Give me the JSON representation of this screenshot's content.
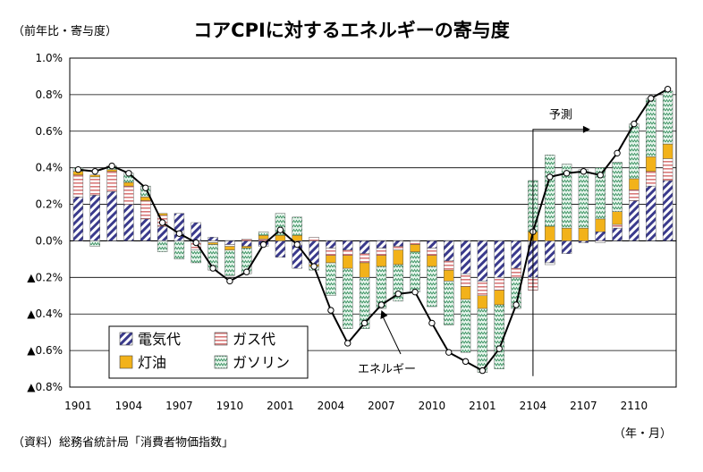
{
  "chart_data": {
    "type": "bar",
    "title": "コアCPIに対するエネルギーの寄与度",
    "ylabel": "（前年比・寄与度）",
    "xlabel": "（年・月）",
    "ylim": [
      -0.8,
      1.0
    ],
    "y_ticks": [
      {
        "v": 1.0,
        "label": "1.0%"
      },
      {
        "v": 0.8,
        "label": "0.8%"
      },
      {
        "v": 0.6,
        "label": "0.6%"
      },
      {
        "v": 0.4,
        "label": "0.4%"
      },
      {
        "v": 0.2,
        "label": "0.2%"
      },
      {
        "v": 0.0,
        "label": "0.0%"
      },
      {
        "v": -0.2,
        "label": "▲0.2%"
      },
      {
        "v": -0.4,
        "label": "▲0.4%"
      },
      {
        "v": -0.6,
        "label": "▲0.6%"
      },
      {
        "v": -0.8,
        "label": "▲0.8%"
      }
    ],
    "x_ticks": [
      {
        "i": 0,
        "label": "1901"
      },
      {
        "i": 3,
        "label": "1904"
      },
      {
        "i": 6,
        "label": "1907"
      },
      {
        "i": 9,
        "label": "1910"
      },
      {
        "i": 12,
        "label": "2001"
      },
      {
        "i": 15,
        "label": "2004"
      },
      {
        "i": 18,
        "label": "2007"
      },
      {
        "i": 21,
        "label": "2010"
      },
      {
        "i": 24,
        "label": "2101"
      },
      {
        "i": 27,
        "label": "2104"
      },
      {
        "i": 30,
        "label": "2107"
      },
      {
        "i": 33,
        "label": "2110"
      }
    ],
    "categories": [
      "1901",
      "1902",
      "1903",
      "1904",
      "1905",
      "1906",
      "1907",
      "1908",
      "1909",
      "1910",
      "1911",
      "1912",
      "2001",
      "2002",
      "2003",
      "2004",
      "2005",
      "2006",
      "2007",
      "2008",
      "2009",
      "2010",
      "2011",
      "2012",
      "2101",
      "2102",
      "2103",
      "2104",
      "2105",
      "2106",
      "2107",
      "2108",
      "2109",
      "2110",
      "2111",
      "2112"
    ],
    "series": [
      {
        "name": "電気代",
        "color": "#3a3a8c",
        "values": [
          0.24,
          0.25,
          0.27,
          0.2,
          0.12,
          0.08,
          0.15,
          0.1,
          0.02,
          -0.02,
          -0.03,
          -0.03,
          -0.09,
          -0.15,
          -0.13,
          -0.04,
          -0.05,
          -0.07,
          -0.04,
          -0.03,
          0.0,
          -0.04,
          -0.11,
          -0.18,
          -0.22,
          -0.2,
          -0.15,
          -0.2,
          -0.12,
          -0.07,
          -0.01,
          0.05,
          0.07,
          0.22,
          0.3,
          0.33
        ]
      },
      {
        "name": "ガス代",
        "color": "#d97a7a",
        "values": [
          0.12,
          0.1,
          0.11,
          0.1,
          0.1,
          0.06,
          0.0,
          -0.05,
          -0.01,
          -0.01,
          0.01,
          0.01,
          0.0,
          0.0,
          0.02,
          -0.04,
          -0.03,
          -0.05,
          -0.04,
          -0.02,
          -0.02,
          -0.04,
          -0.05,
          -0.07,
          -0.08,
          -0.07,
          -0.05,
          -0.07,
          -0.01,
          0.0,
          0.0,
          -0.01,
          0.02,
          0.06,
          0.08,
          0.12
        ]
      },
      {
        "name": "灯油",
        "color": "#f2b21a",
        "values": [
          0.02,
          0.01,
          0.01,
          0.02,
          0.02,
          0.01,
          0.0,
          0.0,
          -0.01,
          -0.02,
          -0.01,
          0.02,
          0.03,
          0.03,
          -0.01,
          -0.04,
          -0.07,
          -0.08,
          -0.06,
          -0.08,
          -0.04,
          -0.06,
          -0.06,
          -0.07,
          -0.07,
          -0.08,
          0.0,
          0.05,
          0.08,
          0.07,
          0.07,
          0.07,
          0.07,
          0.06,
          0.08,
          0.08
        ]
      },
      {
        "name": "ガソリン",
        "color": "#2e8b57",
        "values": [
          0.02,
          -0.03,
          0.02,
          0.05,
          0.06,
          -0.06,
          -0.1,
          -0.07,
          -0.14,
          -0.14,
          -0.14,
          0.02,
          0.12,
          0.1,
          -0.02,
          -0.18,
          -0.33,
          -0.28,
          -0.23,
          -0.2,
          -0.22,
          -0.22,
          -0.24,
          -0.29,
          -0.35,
          -0.35,
          -0.17,
          0.28,
          0.39,
          0.35,
          0.32,
          0.28,
          0.27,
          0.3,
          0.32,
          0.29
        ]
      }
    ],
    "energy_line": {
      "name": "エネルギー",
      "values": [
        0.39,
        0.38,
        0.41,
        0.37,
        0.29,
        0.1,
        0.04,
        -0.01,
        -0.15,
        -0.22,
        -0.17,
        -0.02,
        0.06,
        -0.02,
        -0.14,
        -0.38,
        -0.56,
        -0.45,
        -0.35,
        -0.29,
        -0.28,
        -0.45,
        -0.61,
        -0.66,
        -0.71,
        -0.59,
        -0.35,
        0.05,
        0.35,
        0.37,
        0.38,
        0.36,
        0.48,
        0.64,
        0.78,
        0.83
      ]
    },
    "annotations": [
      {
        "text": "予測",
        "from_index": 27
      },
      {
        "text": "エネルギー",
        "points_to_index": 18
      }
    ],
    "legend_position": "bottom-left"
  },
  "source_note": "（資料）総務省統計局「消費者物価指数」"
}
